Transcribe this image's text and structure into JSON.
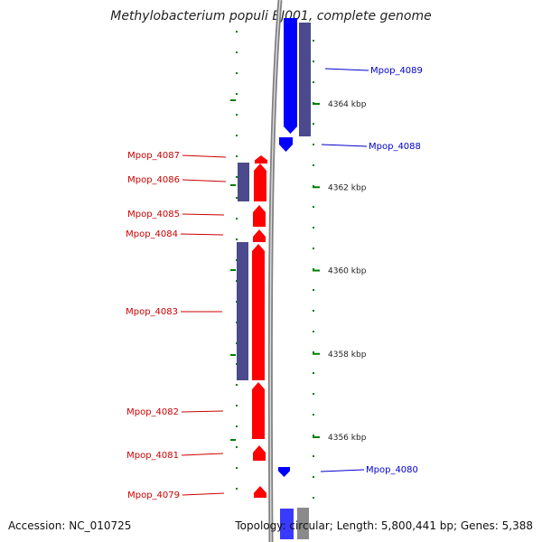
{
  "title": "Methylobacterium populi BJ001, complete genome",
  "footer": {
    "accession": "Accession: NC_010725",
    "summary": "Topology: circular; Length: 5,800,441 bp; Genes: 5,388"
  },
  "colors": {
    "forward_cds": "#ff0000",
    "reverse_cds": "#0000ff",
    "feature_bar": "#4a4a8c",
    "ticks": "#008000",
    "backbone": "#808080",
    "label_forward": "#cc0000",
    "label_reverse": "#0000cc"
  },
  "chart_data": {
    "type": "genome-map",
    "scale_labels": [
      {
        "text": "4364 kbp",
        "kbp": 4364
      },
      {
        "text": "4362 kbp",
        "kbp": 4362
      },
      {
        "text": "4360 kbp",
        "kbp": 4360
      },
      {
        "text": "4358 kbp",
        "kbp": 4358
      },
      {
        "text": "4356 kbp",
        "kbp": 4356
      }
    ],
    "genes": [
      {
        "name": "Mpop_4089",
        "strand": "reverse"
      },
      {
        "name": "Mpop_4088",
        "strand": "reverse"
      },
      {
        "name": "Mpop_4087",
        "strand": "forward"
      },
      {
        "name": "Mpop_4086",
        "strand": "forward"
      },
      {
        "name": "Mpop_4085",
        "strand": "forward"
      },
      {
        "name": "Mpop_4084",
        "strand": "forward"
      },
      {
        "name": "Mpop_4083",
        "strand": "forward"
      },
      {
        "name": "Mpop_4082",
        "strand": "forward"
      },
      {
        "name": "Mpop_4081",
        "strand": "forward"
      },
      {
        "name": "Mpop_4080",
        "strand": "reverse"
      },
      {
        "name": "Mpop_4079",
        "strand": "forward"
      }
    ]
  }
}
